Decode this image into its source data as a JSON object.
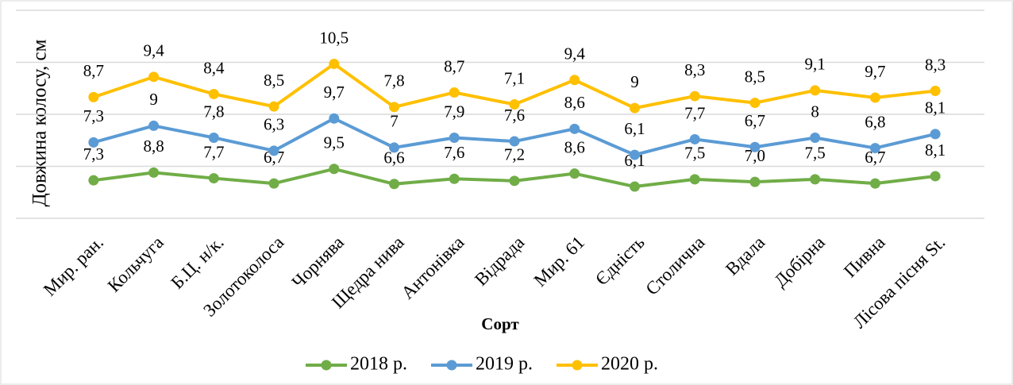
{
  "chart_data": {
    "type": "line",
    "stacked": true,
    "x_label": "Сорт",
    "y_label": "Довжина колосу, см",
    "categories": [
      "Мир. ран.",
      "Кольчуга",
      "Б.Ц. н/к.",
      "Золотоколоса",
      "Чорнява",
      "Щедра нива",
      "Антонівка",
      "Відрада",
      "Мир. 61",
      "Єдність",
      "Столична",
      "Вдала",
      "Добірна",
      "Пивна",
      "Лісова пісня St."
    ],
    "series": [
      {
        "name": "2018 р.",
        "color": "#70ad47",
        "values": [
          7.3,
          8.8,
          7.7,
          6.7,
          9.5,
          6.6,
          7.6,
          7.2,
          8.6,
          6.1,
          7.5,
          7.0,
          7.5,
          6.7,
          8.1
        ],
        "value_labels": [
          "7,3",
          "8,8",
          "7,7",
          "6,7",
          "9,5",
          "6,6",
          "7,6",
          "7,2",
          "8,6",
          "6,1",
          "7,5",
          "7,0",
          "7,5",
          "6,7",
          "8,1"
        ]
      },
      {
        "name": "2019 р.",
        "color": "#5b9bd5",
        "values": [
          7.3,
          9,
          7.8,
          6.3,
          9.7,
          7,
          7.9,
          7.6,
          8.6,
          6.1,
          7.7,
          6.7,
          8,
          6.8,
          8.1
        ],
        "value_labels": [
          "7,3",
          "9",
          "7,8",
          "6,3",
          "9,7",
          "7",
          "7,9",
          "7,6",
          "8,6",
          "6,1",
          "7,7",
          "6,7",
          "8",
          "6,8",
          "8,1"
        ]
      },
      {
        "name": "2020 р.",
        "color": "#ffc000",
        "values": [
          8.7,
          9.4,
          8.4,
          8.5,
          10.5,
          7.8,
          8.7,
          7.1,
          9.4,
          9,
          8.3,
          8.5,
          9.1,
          9.7,
          8.3
        ],
        "value_labels": [
          "8,7",
          "9,4",
          "8,4",
          "8,5",
          "10,5",
          "7,8",
          "8,7",
          "7,1",
          "9,4",
          "9",
          "8,3",
          "8,5",
          "9,1",
          "9,7",
          "8,3"
        ]
      }
    ],
    "ylim": [
      0,
      40
    ],
    "yticks": [
      0,
      10,
      20,
      30,
      40
    ],
    "grid": true,
    "legend": "bottom"
  }
}
